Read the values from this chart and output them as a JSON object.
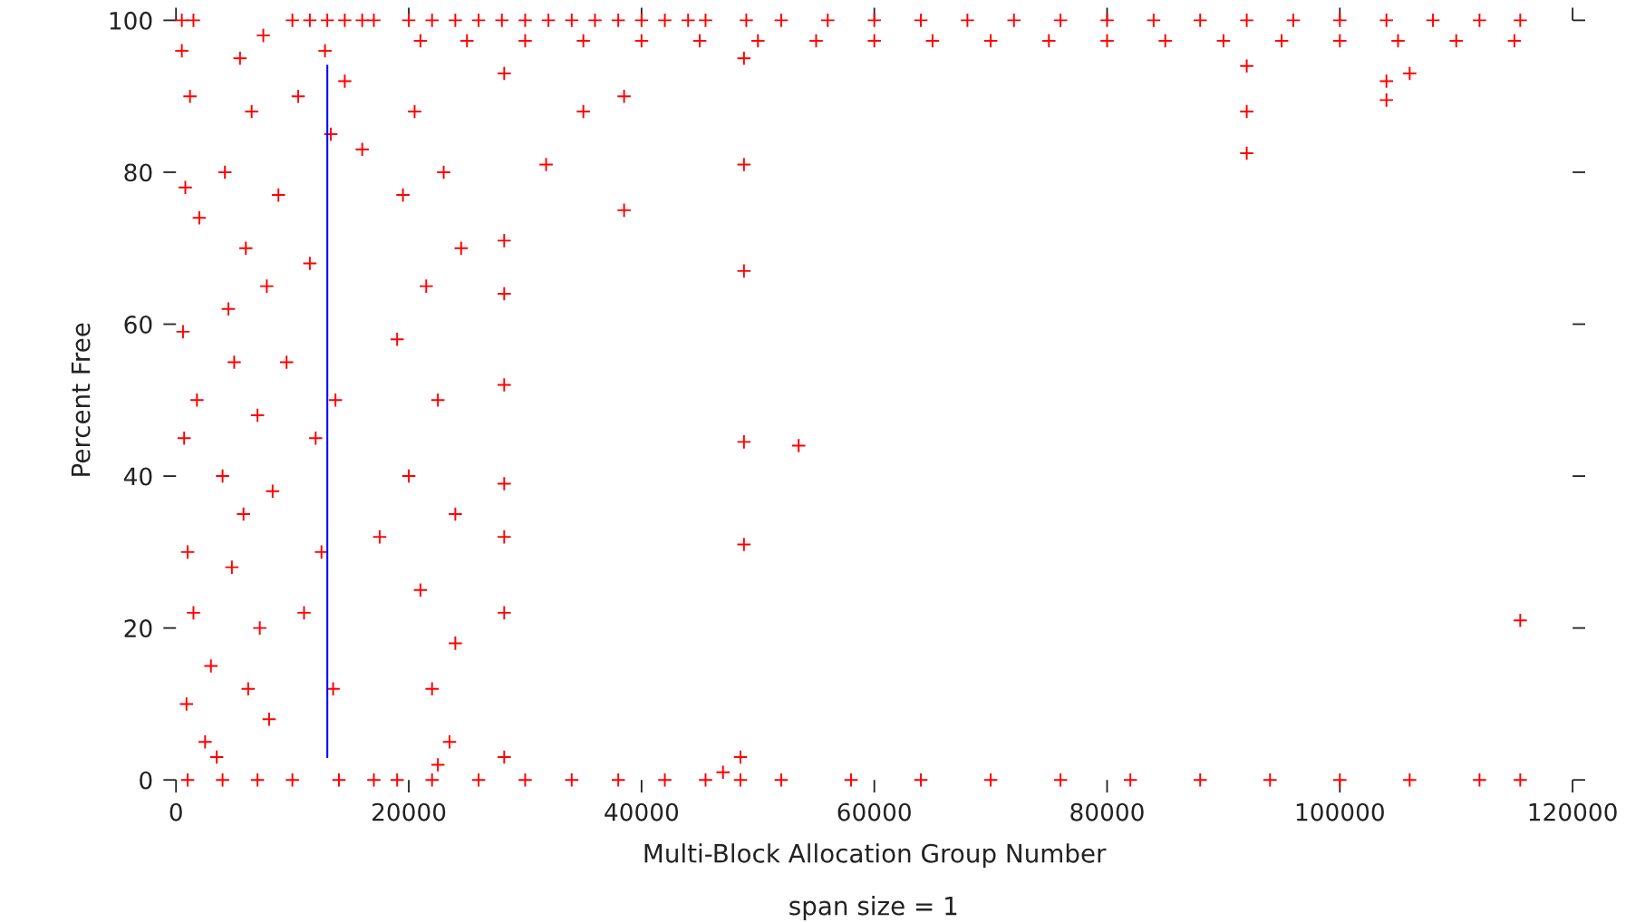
{
  "chart_data": {
    "type": "scatter",
    "xlabel": "Multi-Block Allocation Group Number",
    "ylabel": "Percent Free",
    "annotations": [
      "span size = 1"
    ],
    "xlim": [
      0,
      120000
    ],
    "ylim": [
      0,
      100
    ],
    "xticks": [
      0,
      20000,
      40000,
      60000,
      80000,
      100000,
      120000
    ],
    "yticks": [
      0,
      20,
      40,
      60,
      80,
      100
    ],
    "grid": false,
    "marker": "cross",
    "series": [
      {
        "color": "#ff0000",
        "x": [
          500,
          1500,
          10000,
          11500,
          13000,
          14500,
          16000,
          17000,
          20000,
          22000,
          24000,
          26000,
          28000,
          30000,
          32000,
          34000,
          36000,
          38000,
          40000,
          42000,
          44000,
          45500,
          49000,
          52000,
          56000,
          60000,
          64000,
          68000,
          72000,
          76000,
          80000,
          84000,
          88000,
          92000,
          96000,
          100000,
          104000,
          108000,
          112000,
          115500,
          21000,
          25000,
          30000,
          35000,
          40000,
          45000,
          50000,
          55000,
          60000,
          65000,
          70000,
          75000,
          80000,
          85000,
          90000,
          95000,
          100000,
          105000,
          110000,
          115000,
          1000,
          4000,
          7000,
          10000,
          14000,
          17000,
          19000,
          22000,
          26000,
          30000,
          34000,
          38000,
          42000,
          45500,
          48500,
          52000,
          58000,
          64000,
          70000,
          76000,
          82000,
          88000,
          94000,
          100000,
          106000,
          112000,
          115500
        ],
        "values": [
          100,
          100,
          100,
          100,
          100,
          100,
          100,
          100,
          100,
          100,
          100,
          100,
          100,
          100,
          100,
          100,
          100,
          100,
          100,
          100,
          100,
          100,
          100,
          100,
          100,
          100,
          100,
          100,
          100,
          100,
          100,
          100,
          100,
          100,
          100,
          100,
          100,
          100,
          100,
          100,
          97.3,
          97.3,
          97.3,
          97.3,
          97.3,
          97.3,
          97.3,
          97.3,
          97.3,
          97.3,
          97.3,
          97.3,
          97.3,
          97.3,
          97.3,
          97.3,
          97.3,
          97.3,
          97.3,
          97.3,
          0,
          0,
          0,
          0,
          0,
          0,
          0,
          0,
          0,
          0,
          0,
          0,
          0,
          0,
          0,
          0,
          0,
          0,
          0,
          0,
          0,
          0,
          0,
          0,
          0,
          0,
          0
        ]
      },
      {
        "color": "#ff0000",
        "x": [
          500,
          800,
          600,
          1200,
          700,
          1000,
          1500,
          900,
          2000,
          1800,
          2500,
          3000,
          3500,
          4000,
          4200,
          4500,
          4800,
          5000,
          5500,
          5800,
          6000,
          6200,
          6500,
          7000,
          7200,
          7500,
          7800,
          8000,
          8300,
          8800,
          9500,
          10500,
          11000,
          11500,
          12000,
          12500,
          12800,
          13300,
          13500,
          13700,
          14500,
          16000,
          17500,
          19000,
          19500,
          20000,
          20500,
          21000,
          21500,
          22000,
          22500,
          23000,
          23500,
          24000,
          24500,
          24000,
          22500,
          28200,
          28200,
          28200,
          28200,
          28200,
          28200,
          28200,
          28200,
          31800,
          35000,
          38500,
          38500,
          48800,
          48800,
          48800,
          48800,
          48800,
          48500,
          47000,
          53500,
          92000,
          92000,
          92000,
          104000,
          104000,
          106000,
          115500
        ],
        "values": [
          96,
          78,
          59,
          90,
          45,
          30,
          22,
          10,
          74,
          50,
          5,
          15,
          3,
          40,
          80,
          62,
          28,
          55,
          95,
          35,
          70,
          12,
          88,
          48,
          20,
          98,
          65,
          8,
          38,
          77,
          55,
          90,
          22,
          68,
          45,
          30,
          96,
          85,
          12,
          50,
          92,
          83,
          32,
          58,
          77,
          40,
          88,
          25,
          65,
          12,
          50,
          80,
          5,
          35,
          70,
          18,
          2,
          93,
          71,
          64,
          52,
          39,
          32,
          22,
          3,
          81,
          88,
          90,
          75,
          95,
          81,
          67,
          44.5,
          31,
          3,
          1,
          44,
          94,
          88,
          82.5,
          89.5,
          92,
          93,
          21
        ]
      },
      {
        "type": "line",
        "marker": "none",
        "color": "#0000ff",
        "x": [
          13000,
          13000
        ],
        "values": [
          3,
          94
        ]
      }
    ]
  }
}
